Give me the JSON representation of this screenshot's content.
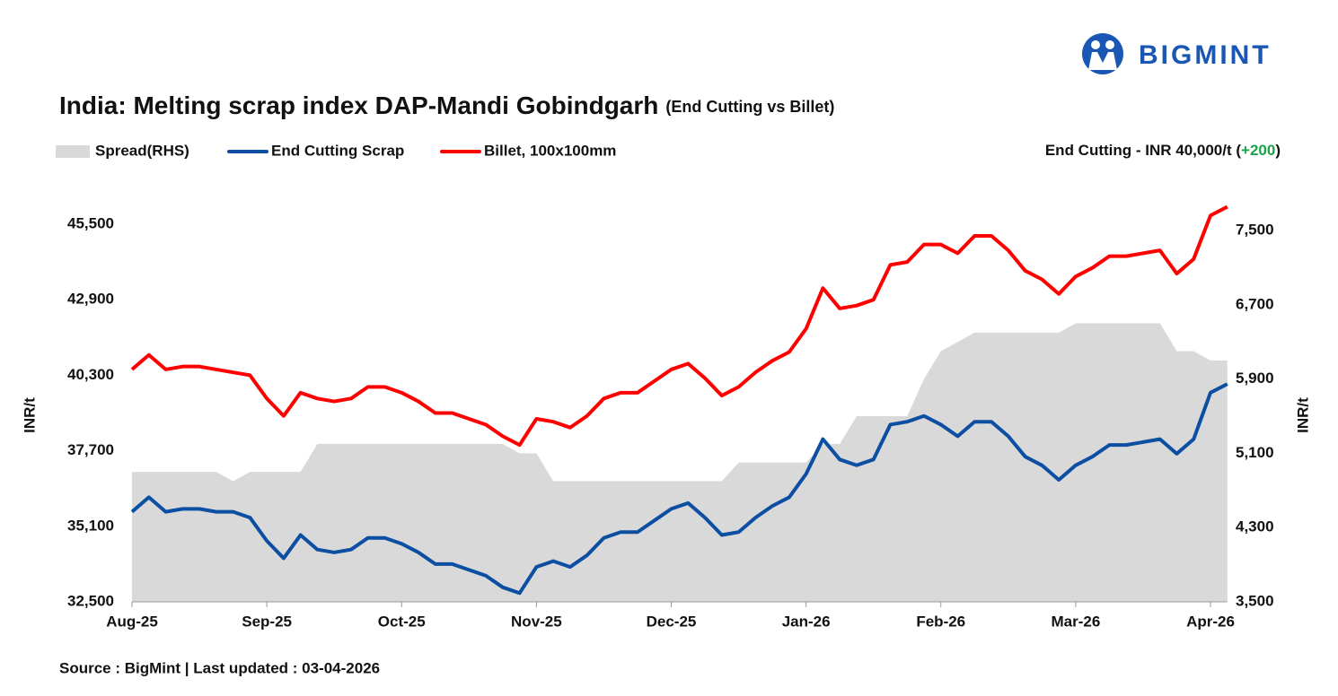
{
  "chart_data": {
    "type": "line",
    "title": "India: Melting scrap index DAP-Mandi Gobindgarh",
    "subtitle": "(End Cutting vs Billet)",
    "annotation": {
      "prefix": "End Cutting - INR 40,000/t (",
      "change": "+200",
      "suffix": ")"
    },
    "source": "Source : BigMint | Last updated : 03-04-2026",
    "brand": "BIGMINT",
    "ylabel": "INR/t",
    "y2label": "INR/t",
    "categories": [
      "Aug-25",
      null,
      null,
      null,
      null,
      null,
      null,
      null,
      "Sep-25",
      null,
      null,
      null,
      null,
      null,
      null,
      null,
      "Oct-25",
      null,
      null,
      null,
      null,
      null,
      null,
      null,
      "Nov-25",
      null,
      null,
      null,
      null,
      null,
      null,
      null,
      "Dec-25",
      null,
      null,
      null,
      null,
      null,
      null,
      null,
      "Jan-26",
      null,
      null,
      null,
      null,
      null,
      null,
      null,
      "Feb-26",
      null,
      null,
      null,
      null,
      null,
      null,
      null,
      "Mar-26",
      null,
      null,
      null,
      null,
      null,
      null,
      null,
      "Apr-26",
      null
    ],
    "series": [
      {
        "name": "Spread(RHS)",
        "color": "#d9d9d9",
        "kind": "area",
        "axis": "y2",
        "values": [
          4900,
          4900,
          4900,
          4900,
          4900,
          4900,
          4800,
          4900,
          4900,
          4900,
          4900,
          5200,
          5200,
          5200,
          5200,
          5200,
          5200,
          5200,
          5200,
          5200,
          5200,
          5200,
          5200,
          5100,
          5100,
          4800,
          4800,
          4800,
          4800,
          4800,
          4800,
          4800,
          4800,
          4800,
          4800,
          4800,
          5000,
          5000,
          5000,
          5000,
          5000,
          5200,
          5200,
          5500,
          5500,
          5500,
          5500,
          5900,
          6200,
          6300,
          6400,
          6400,
          6400,
          6400,
          6400,
          6400,
          6500,
          6500,
          6500,
          6500,
          6500,
          6500,
          6200,
          6200,
          6100,
          6100
        ]
      },
      {
        "name": "End Cutting Scrap",
        "color": "#0b4ea2",
        "kind": "line",
        "values": [
          35600,
          36100,
          35600,
          35700,
          35700,
          35600,
          35600,
          35400,
          34600,
          34000,
          34800,
          34300,
          34200,
          34300,
          34700,
          34700,
          34500,
          34200,
          33800,
          33800,
          33600,
          33400,
          33000,
          32800,
          33700,
          33900,
          33700,
          34100,
          34700,
          34900,
          34900,
          35300,
          35700,
          35900,
          35400,
          34800,
          34900,
          35400,
          35800,
          36100,
          36900,
          38100,
          37400,
          37200,
          37400,
          38600,
          38700,
          38900,
          38600,
          38200,
          38700,
          38700,
          38200,
          37500,
          37200,
          36700,
          37200,
          37500,
          37900,
          37900,
          38000,
          38100,
          37600,
          38100,
          39700,
          40000
        ]
      },
      {
        "name": "Billet, 100x100mm",
        "color": "#ff0000",
        "kind": "line",
        "values": [
          40500,
          41000,
          40500,
          40600,
          40600,
          40500,
          40400,
          40300,
          39500,
          38900,
          39700,
          39500,
          39400,
          39500,
          39900,
          39900,
          39700,
          39400,
          39000,
          39000,
          38800,
          38600,
          38200,
          37900,
          38800,
          38700,
          38500,
          38900,
          39500,
          39700,
          39700,
          40100,
          40500,
          40700,
          40200,
          39600,
          39900,
          40400,
          40800,
          41100,
          41900,
          43300,
          42600,
          42700,
          42900,
          44100,
          44200,
          44800,
          44800,
          44500,
          45100,
          45100,
          44600,
          43900,
          43600,
          43100,
          43700,
          44000,
          44400,
          44400,
          44500,
          44600,
          43800,
          44300,
          45800,
          46100
        ]
      }
    ],
    "ylim": [
      32500,
      45500
    ],
    "yticks": [
      {
        "value": 32500,
        "label": "32,500"
      },
      {
        "value": 35100,
        "label": "35,100"
      },
      {
        "value": 37700,
        "label": "37,700"
      },
      {
        "value": 40300,
        "label": "40,300"
      },
      {
        "value": 42900,
        "label": "42,900"
      },
      {
        "value": 45500,
        "label": "45,500"
      }
    ],
    "y2lim": [
      3500,
      7500
    ],
    "y2ticks": [
      {
        "value": 3500,
        "label": "3,500"
      },
      {
        "value": 4300,
        "label": "4,300"
      },
      {
        "value": 5100,
        "label": "5,100"
      },
      {
        "value": 5900,
        "label": "5,900"
      },
      {
        "value": 6700,
        "label": "6,700"
      },
      {
        "value": 7500,
        "label": "7,500"
      }
    ],
    "grid": false
  }
}
